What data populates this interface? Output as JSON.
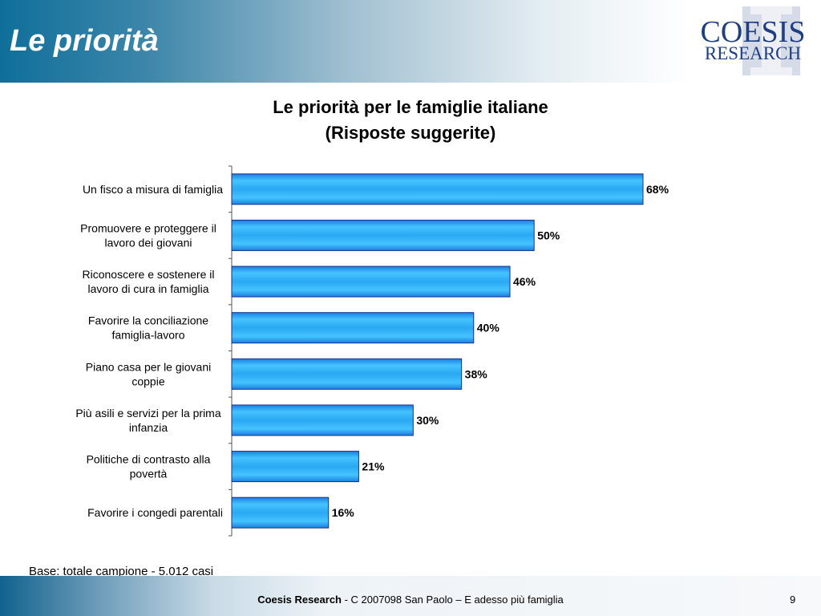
{
  "header": {
    "title": "Le priorità"
  },
  "logo": {
    "line1": "COESIS",
    "line2": "RESEARCH",
    "color": "#1f3f85"
  },
  "chart_data": {
    "type": "bar",
    "orientation": "horizontal",
    "title_line1": "Le priorità per le famiglie italiane",
    "title_line2": "(Risposte suggerite)",
    "categories": [
      [
        "Un fisco a misura di famiglia"
      ],
      [
        "Promuovere e proteggere il",
        "lavoro dei giovani"
      ],
      [
        "Riconoscere e sostenere il",
        "lavoro di cura in famiglia"
      ],
      [
        "Favorire la conciliazione",
        "famiglia-lavoro"
      ],
      [
        "Piano casa per le giovani",
        "coppie"
      ],
      [
        "Più asili e servizi per la prima",
        "infanzia"
      ],
      [
        "Politiche di contrasto alla",
        "povertà"
      ],
      [
        "Favorire i congedi parentali"
      ]
    ],
    "values": [
      68,
      50,
      46,
      40,
      38,
      30,
      21,
      16
    ],
    "value_labels": [
      "68%",
      "50%",
      "46%",
      "40%",
      "38%",
      "30%",
      "21%",
      "16%"
    ],
    "xlim": [
      0,
      100
    ],
    "unit": "%",
    "grid": false,
    "bar_color": "#35a8f0"
  },
  "base_note": "Base: totale campione - 5.012 casi",
  "footer": {
    "brand": "Coesis Research",
    "text": " - C 2007098  San Paolo – E adesso più famiglia",
    "page": "9"
  }
}
